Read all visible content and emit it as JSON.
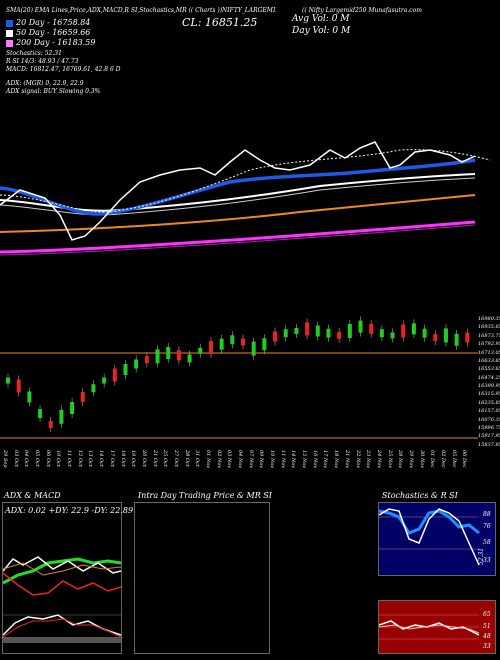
{
  "header": {
    "left_line": "SMA(20) EMA Lines,Price,ADX,MACD,R   SI,Stochastics,MR   (( Charts ))NIFTY_LARGEMID250",
    "right_line": "(( Nifty Largemid250 Munafasutra.com",
    "cl": "CL: 16851.25",
    "avg_vol": "Avg Vol: 0  M",
    "day_vol": "Day Vol: 0  M"
  },
  "legend": [
    {
      "label": "20  Day  -  16758.84",
      "color": "#1e5ae6"
    },
    {
      "label": "50  Day  -  16659.66",
      "color": "#ffffff"
    },
    {
      "label": "200  Day  -  16183.59",
      "color": "#ff77ff"
    }
  ],
  "indicators": {
    "rsi": "Relative Strength Index: 52.31",
    "rsi_a": "Relative Strength Index: 52.31",
    "rsi_line1": "Stochastics: 52.31",
    "si_line": "R           SI 14/3: 48.93 / 47.73",
    "macd": "MACD: 16812.47,  16769.61,  42.8          6   D",
    "adx": "ADX:                                  (MGR) 0,  22.9,  22.9",
    "adx_signal": "ADX  signal:                                  BUY Slowing 0.3%"
  },
  "price_axis": [
    "16980.35",
    "16935.65",
    "16873.75",
    "16792.95",
    "16713.05",
    "16633.85",
    "16553.65",
    "16474.25",
    "16399.95",
    "16315.95",
    "16235.85",
    "16157.05",
    "16076.35",
    "15996.75",
    "15917.95",
    "15837.85"
  ],
  "dates": [
    "29 Sep",
    "03 Oct",
    "04 Oct",
    "05 Oct",
    "06 Oct",
    "10 Oct",
    "11 Oct",
    "12 Oct",
    "13 Oct",
    "14 Oct",
    "17 Oct",
    "18 Oct",
    "19 Oct",
    "20 Oct",
    "21 Oct",
    "25 Oct",
    "27 Oct",
    "28 Oct",
    "31 Oct",
    "01 Nov",
    "02 Nov",
    "03 Nov",
    "04 Nov",
    "07 Nov",
    "09 Nov",
    "10 Nov",
    "11 Nov",
    "14 Nov",
    "15 Nov",
    "16 Nov",
    "17 Nov",
    "18 Nov",
    "21 Nov",
    "22 Nov",
    "23 Nov",
    "24 Nov",
    "25 Nov",
    "28 Nov",
    "29 Nov",
    "30 Nov",
    "01 Dec",
    "02 Dec",
    "05 Dec",
    "06 Dec"
  ],
  "panels": {
    "adx_macd": {
      "title": "ADX  & MACD",
      "readout": "ADX: 0.02  +DY: 22.9  -DY: 22.89"
    },
    "intraday": {
      "title": "Intra  Day  Trading Price  & MR                SI"
    },
    "stoch": {
      "title": "Stochastics & R              SI",
      "levels": [
        "88",
        "76",
        "58",
        "33"
      ],
      "rsi_levels": [
        "65",
        "51",
        "48",
        "33"
      ],
      "vals": [
        "52.31"
      ]
    }
  },
  "colors": {
    "up": "#22cc22",
    "down": "#ee2222",
    "sma20": "#1e5ae6",
    "sma50": "#ffffff",
    "sma200": "#ff44ff",
    "orange": "#ee8822",
    "stoch_bg": "#000066",
    "rsi_bg": "#990000"
  }
}
